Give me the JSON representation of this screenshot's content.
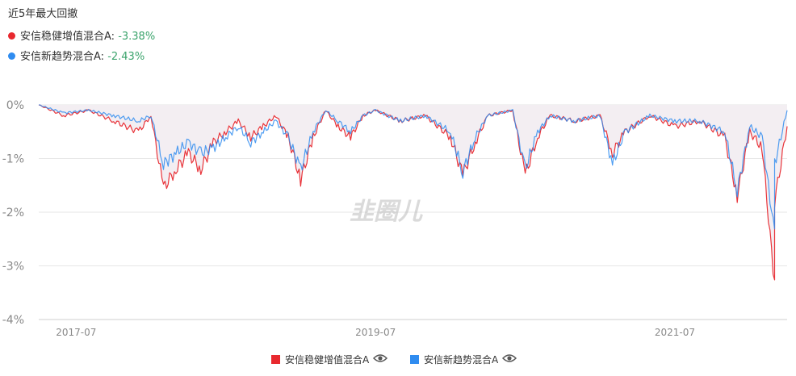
{
  "header": {
    "title": "近5年最大回撤",
    "series_rows": [
      {
        "name": "安信稳健增值混合A",
        "sep": ": ",
        "value": "-3.38%",
        "color": "#e8292f"
      },
      {
        "name": "安信新趋势混合A",
        "sep": ": ",
        "value": "-2.43%",
        "color": "#2f8cf0"
      }
    ]
  },
  "watermark": "韭圈儿",
  "legend": [
    {
      "name": "安信稳健增值混合A",
      "color": "#e8292f",
      "icon": "eye-icon"
    },
    {
      "name": "安信新趋势混合A",
      "color": "#2f8cf0",
      "icon": "eye-icon"
    }
  ],
  "chart_data": {
    "type": "area",
    "title": "近5年最大回撤",
    "xlabel": "",
    "ylabel": "",
    "x_ticks": [
      "2017-07",
      "2019-07",
      "2021-07"
    ],
    "y_ticks": [
      "0%",
      "-1%",
      "-2%",
      "-3%",
      "-4%"
    ],
    "ylim": [
      -4,
      0
    ],
    "xlim": [
      "2017-04",
      "2022-04"
    ],
    "grid": true,
    "legend_position": "bottom",
    "series": [
      {
        "name": "安信稳健增值混合A",
        "color": "#e8292f",
        "max_drawdown": -3.38,
        "points": [
          [
            "2017-04",
            0
          ],
          [
            "2017-06",
            -0.2
          ],
          [
            "2017-08",
            -0.1
          ],
          [
            "2017-10",
            -0.3
          ],
          [
            "2017-12",
            -0.5
          ],
          [
            "2018-01",
            -0.2
          ],
          [
            "2018-02",
            -1.55
          ],
          [
            "2018-03",
            -1.2
          ],
          [
            "2018-04",
            -0.9
          ],
          [
            "2018-05",
            -1.2
          ],
          [
            "2018-06",
            -0.7
          ],
          [
            "2018-07",
            -0.5
          ],
          [
            "2018-08",
            -0.3
          ],
          [
            "2018-09",
            -0.6
          ],
          [
            "2018-10",
            -0.4
          ],
          [
            "2018-11",
            -0.2
          ],
          [
            "2018-12",
            -0.6
          ],
          [
            "2019-01",
            -1.4
          ],
          [
            "2019-02",
            -0.6
          ],
          [
            "2019-03",
            -0.1
          ],
          [
            "2019-04",
            -0.4
          ],
          [
            "2019-05",
            -0.6
          ],
          [
            "2019-06",
            -0.2
          ],
          [
            "2019-07",
            -0.1
          ],
          [
            "2019-09",
            -0.3
          ],
          [
            "2019-11",
            -0.2
          ],
          [
            "2020-01",
            -0.6
          ],
          [
            "2020-02",
            -1.3
          ],
          [
            "2020-03",
            -0.7
          ],
          [
            "2020-04",
            -0.2
          ],
          [
            "2020-06",
            -0.1
          ],
          [
            "2020-07",
            -1.3
          ],
          [
            "2020-08",
            -0.6
          ],
          [
            "2020-09",
            -0.2
          ],
          [
            "2020-11",
            -0.3
          ],
          [
            "2021-01",
            -0.2
          ],
          [
            "2021-02",
            -0.9
          ],
          [
            "2021-03",
            -0.5
          ],
          [
            "2021-05",
            -0.2
          ],
          [
            "2021-07",
            -0.4
          ],
          [
            "2021-09",
            -0.3
          ],
          [
            "2021-11",
            -0.6
          ],
          [
            "2021-12",
            -1.7
          ],
          [
            "2022-01",
            -0.5
          ],
          [
            "2022-02",
            -0.8
          ],
          [
            "2022-03",
            -3.38
          ],
          [
            "2022-03",
            -1.8
          ],
          [
            "2022-04",
            -0.4
          ]
        ]
      },
      {
        "name": "安信新趋势混合A",
        "color": "#2f8cf0",
        "max_drawdown": -2.43,
        "points": [
          [
            "2017-04",
            0
          ],
          [
            "2017-06",
            -0.15
          ],
          [
            "2017-08",
            -0.1
          ],
          [
            "2017-10",
            -0.2
          ],
          [
            "2017-12",
            -0.3
          ],
          [
            "2018-01",
            -0.2
          ],
          [
            "2018-02",
            -1.1
          ],
          [
            "2018-03",
            -0.9
          ],
          [
            "2018-04",
            -0.7
          ],
          [
            "2018-05",
            -0.9
          ],
          [
            "2018-06",
            -0.8
          ],
          [
            "2018-07",
            -0.6
          ],
          [
            "2018-08",
            -0.4
          ],
          [
            "2018-09",
            -0.7
          ],
          [
            "2018-10",
            -0.5
          ],
          [
            "2018-11",
            -0.3
          ],
          [
            "2018-12",
            -0.6
          ],
          [
            "2019-01",
            -1.2
          ],
          [
            "2019-02",
            -0.5
          ],
          [
            "2019-03",
            -0.1
          ],
          [
            "2019-04",
            -0.3
          ],
          [
            "2019-05",
            -0.5
          ],
          [
            "2019-06",
            -0.2
          ],
          [
            "2019-07",
            -0.1
          ],
          [
            "2019-09",
            -0.3
          ],
          [
            "2019-11",
            -0.2
          ],
          [
            "2020-01",
            -0.5
          ],
          [
            "2020-02",
            -1.25
          ],
          [
            "2020-03",
            -0.6
          ],
          [
            "2020-04",
            -0.2
          ],
          [
            "2020-06",
            -0.1
          ],
          [
            "2020-07",
            -1.2
          ],
          [
            "2020-08",
            -0.5
          ],
          [
            "2020-09",
            -0.2
          ],
          [
            "2020-11",
            -0.3
          ],
          [
            "2021-01",
            -0.2
          ],
          [
            "2021-02",
            -1.1
          ],
          [
            "2021-03",
            -0.5
          ],
          [
            "2021-05",
            -0.2
          ],
          [
            "2021-07",
            -0.3
          ],
          [
            "2021-09",
            -0.3
          ],
          [
            "2021-11",
            -0.5
          ],
          [
            "2021-12",
            -1.6
          ],
          [
            "2022-01",
            -0.4
          ],
          [
            "2022-02",
            -0.6
          ],
          [
            "2022-03",
            -2.43
          ],
          [
            "2022-03",
            -1.1
          ],
          [
            "2022-04",
            -0.1
          ]
        ]
      }
    ]
  }
}
